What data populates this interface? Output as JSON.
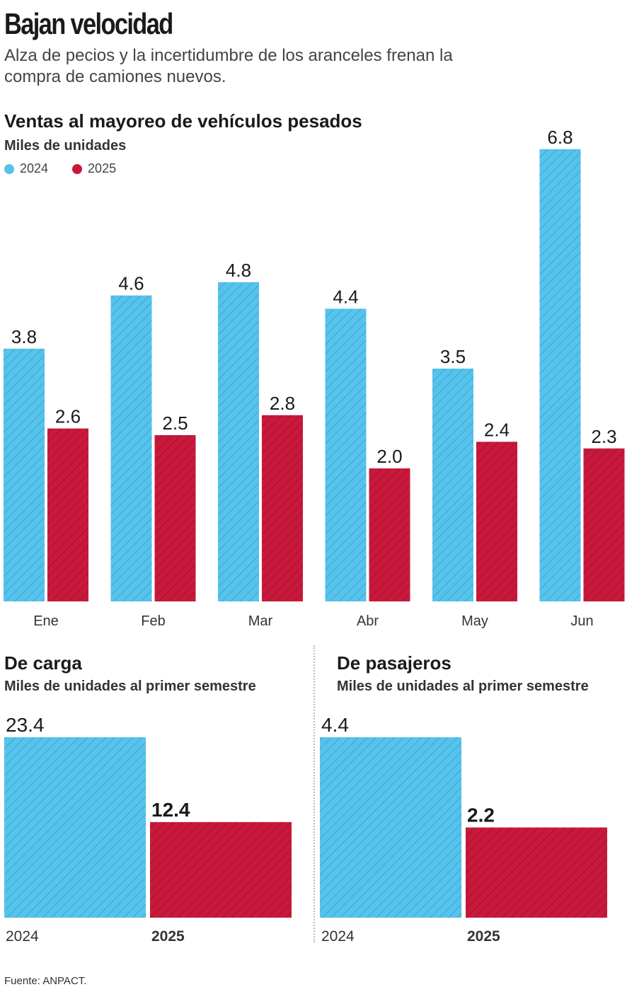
{
  "header": {
    "title": "Bajan velocidad",
    "subtitle": "Alza de pecios y la incertidumbre de los aranceles frenan la compra de camiones nuevos."
  },
  "colors": {
    "y2024": "#56c3ec",
    "y2025": "#c8193c"
  },
  "main_chart": {
    "title": "Ventas al mayoreo de vehículos pesados",
    "unit": "Miles de unidades",
    "legend": [
      {
        "label": "2024",
        "color": "#56c3ec"
      },
      {
        "label": "2025",
        "color": "#c8193c"
      }
    ]
  },
  "carga": {
    "title": "De carga",
    "unit": "Miles de unidades al primer semestre"
  },
  "pasajeros": {
    "title": "De pasajeros",
    "unit": "Miles de unidades al primer semestre"
  },
  "source": "Fuente: ANPACT.",
  "chart_data": [
    {
      "type": "bar",
      "title": "Ventas al mayoreo de vehículos pesados",
      "ylabel": "Miles de unidades",
      "categories": [
        "Ene",
        "Feb",
        "Mar",
        "Abr",
        "May",
        "Jun"
      ],
      "series": [
        {
          "name": "2024",
          "values": [
            3.8,
            4.6,
            4.8,
            4.4,
            3.5,
            6.8
          ]
        },
        {
          "name": "2025",
          "values": [
            2.6,
            2.5,
            2.8,
            2.0,
            2.4,
            2.3
          ]
        }
      ],
      "legend": "top-left",
      "grid": false
    },
    {
      "type": "bar",
      "title": "De carga",
      "ylabel": "Miles de unidades al primer semestre",
      "categories": [
        "2024",
        "2025"
      ],
      "values": [
        23.4,
        12.4
      ],
      "grid": false
    },
    {
      "type": "bar",
      "title": "De pasajeros",
      "ylabel": "Miles de unidades al primer semestre",
      "categories": [
        "2024",
        "2025"
      ],
      "values": [
        4.4,
        2.2
      ],
      "grid": false
    }
  ]
}
